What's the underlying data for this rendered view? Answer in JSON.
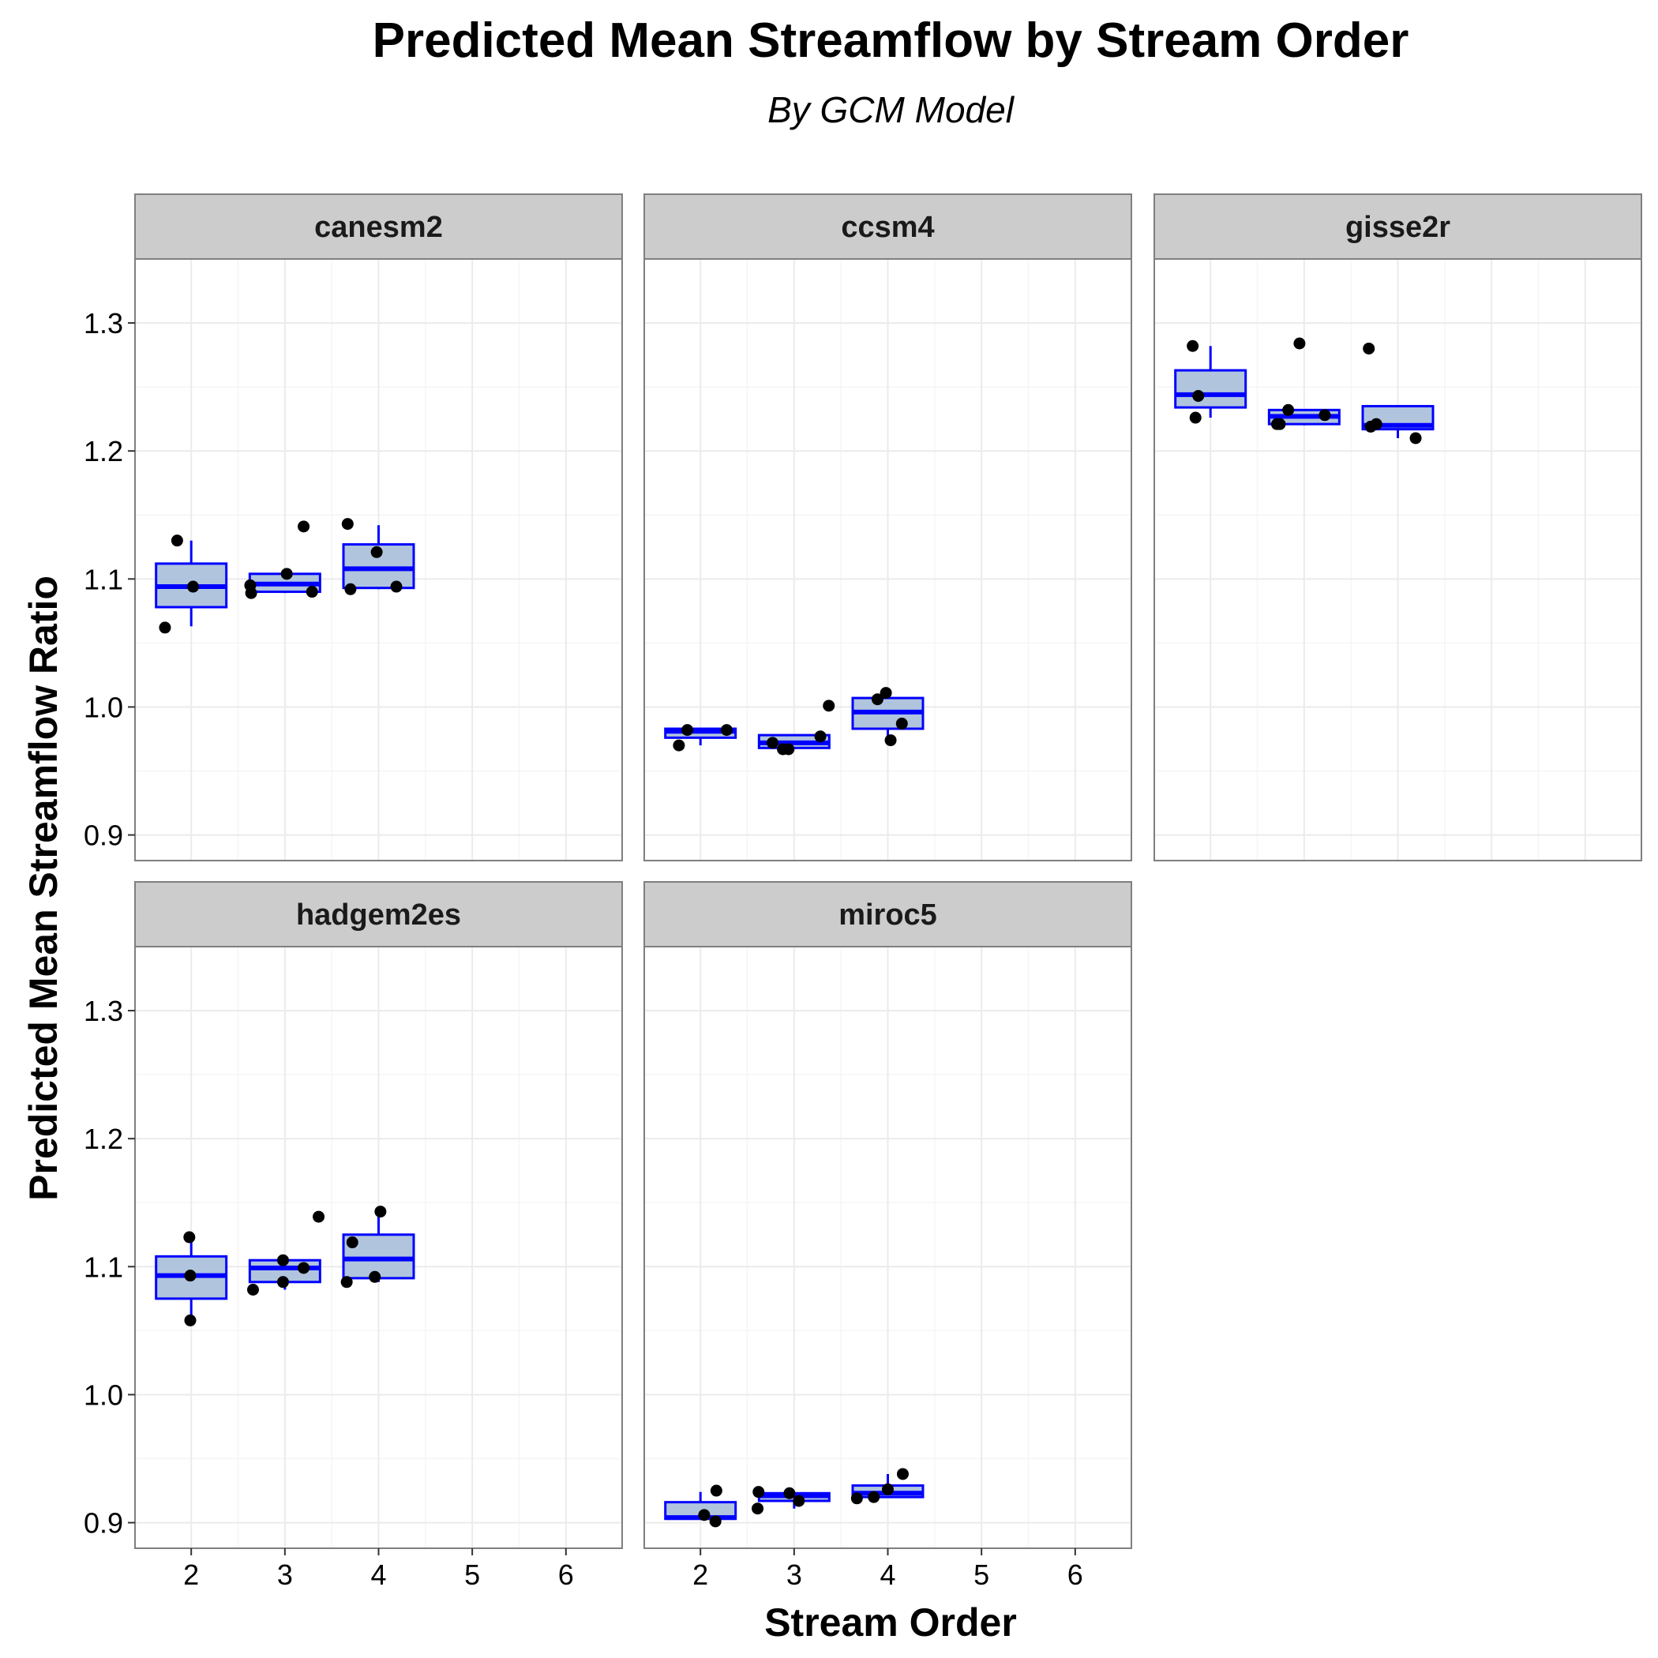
{
  "chart_data": {
    "type": "boxplot",
    "title": "Predicted Mean Streamflow by Stream Order",
    "subtitle": "By GCM Model",
    "xlabel": "Stream Order",
    "ylabel": "Predicted Mean Streamflow Ratio",
    "x_ticks": [
      2,
      3,
      4,
      5,
      6
    ],
    "y_ticks": [
      0.9,
      1.0,
      1.1,
      1.2,
      1.3
    ],
    "xlim": [
      1.4,
      6.6
    ],
    "ylim": [
      0.88,
      1.35
    ],
    "grid": true,
    "colors": {
      "box_fill": "#b0c4de",
      "box_stroke": "#0000ff",
      "point": "#000000",
      "strip_bg": "#cccccc",
      "grid": "#ebebeb",
      "panel_border": "#7f7f7f"
    },
    "panels": [
      {
        "name": "canesm2",
        "boxes": [
          {
            "x": 2,
            "lower_whisker": 1.063,
            "q1": 1.078,
            "median": 1.094,
            "q3": 1.112,
            "upper_whisker": 1.13
          },
          {
            "x": 3,
            "lower_whisker": 1.089,
            "q1": 1.09,
            "median": 1.096,
            "q3": 1.104,
            "upper_whisker": 1.104
          },
          {
            "x": 4,
            "lower_whisker": 1.092,
            "q1": 1.093,
            "median": 1.108,
            "q3": 1.127,
            "upper_whisker": 1.142
          }
        ],
        "points": [
          {
            "x": 1.72,
            "y": 1.062
          },
          {
            "x": 1.85,
            "y": 1.13
          },
          {
            "x": 2.02,
            "y": 1.094
          },
          {
            "x": 2.63,
            "y": 1.095
          },
          {
            "x": 2.64,
            "y": 1.089
          },
          {
            "x": 3.02,
            "y": 1.104
          },
          {
            "x": 3.2,
            "y": 1.141
          },
          {
            "x": 3.29,
            "y": 1.09
          },
          {
            "x": 3.67,
            "y": 1.143
          },
          {
            "x": 3.7,
            "y": 1.092
          },
          {
            "x": 3.98,
            "y": 1.121
          },
          {
            "x": 4.19,
            "y": 1.094
          }
        ]
      },
      {
        "name": "ccsm4",
        "boxes": [
          {
            "x": 2,
            "lower_whisker": 0.97,
            "q1": 0.976,
            "median": 0.981,
            "q3": 0.983,
            "upper_whisker": 0.983
          },
          {
            "x": 3,
            "lower_whisker": 0.967,
            "q1": 0.968,
            "median": 0.972,
            "q3": 0.978,
            "upper_whisker": 0.978
          },
          {
            "x": 4,
            "lower_whisker": 0.974,
            "q1": 0.983,
            "median": 0.996,
            "q3": 1.007,
            "upper_whisker": 1.011
          }
        ],
        "points": [
          {
            "x": 1.77,
            "y": 0.97
          },
          {
            "x": 1.86,
            "y": 0.982
          },
          {
            "x": 2.28,
            "y": 0.982
          },
          {
            "x": 2.77,
            "y": 0.972
          },
          {
            "x": 2.88,
            "y": 0.967
          },
          {
            "x": 2.94,
            "y": 0.967
          },
          {
            "x": 3.28,
            "y": 0.977
          },
          {
            "x": 3.37,
            "y": 1.001
          },
          {
            "x": 3.89,
            "y": 1.006
          },
          {
            "x": 3.98,
            "y": 1.011
          },
          {
            "x": 4.03,
            "y": 0.974
          },
          {
            "x": 4.15,
            "y": 0.987
          }
        ]
      },
      {
        "name": "gisse2r",
        "boxes": [
          {
            "x": 2,
            "lower_whisker": 1.226,
            "q1": 1.234,
            "median": 1.244,
            "q3": 1.263,
            "upper_whisker": 1.282
          },
          {
            "x": 3,
            "lower_whisker": 1.22,
            "q1": 1.221,
            "median": 1.227,
            "q3": 1.232,
            "upper_whisker": 1.232
          },
          {
            "x": 4,
            "lower_whisker": 1.21,
            "q1": 1.217,
            "median": 1.22,
            "q3": 1.235,
            "upper_whisker": 1.235
          }
        ],
        "points": [
          {
            "x": 1.81,
            "y": 1.282
          },
          {
            "x": 1.84,
            "y": 1.226
          },
          {
            "x": 1.87,
            "y": 1.243
          },
          {
            "x": 2.71,
            "y": 1.221
          },
          {
            "x": 2.74,
            "y": 1.221
          },
          {
            "x": 2.83,
            "y": 1.232
          },
          {
            "x": 2.95,
            "y": 1.284
          },
          {
            "x": 3.22,
            "y": 1.228
          },
          {
            "x": 3.69,
            "y": 1.28
          },
          {
            "x": 3.71,
            "y": 1.219
          },
          {
            "x": 3.77,
            "y": 1.221
          },
          {
            "x": 4.19,
            "y": 1.21
          }
        ]
      },
      {
        "name": "hadgem2es",
        "boxes": [
          {
            "x": 2,
            "lower_whisker": 1.058,
            "q1": 1.075,
            "median": 1.093,
            "q3": 1.108,
            "upper_whisker": 1.123
          },
          {
            "x": 3,
            "lower_whisker": 1.082,
            "q1": 1.088,
            "median": 1.099,
            "q3": 1.105,
            "upper_whisker": 1.105
          },
          {
            "x": 4,
            "lower_whisker": 1.088,
            "q1": 1.091,
            "median": 1.106,
            "q3": 1.125,
            "upper_whisker": 1.143
          }
        ],
        "points": [
          {
            "x": 1.98,
            "y": 1.123
          },
          {
            "x": 1.99,
            "y": 1.093
          },
          {
            "x": 1.99,
            "y": 1.058
          },
          {
            "x": 2.66,
            "y": 1.082
          },
          {
            "x": 2.98,
            "y": 1.105
          },
          {
            "x": 2.98,
            "y": 1.088
          },
          {
            "x": 3.2,
            "y": 1.099
          },
          {
            "x": 3.36,
            "y": 1.139
          },
          {
            "x": 3.66,
            "y": 1.088
          },
          {
            "x": 3.72,
            "y": 1.119
          },
          {
            "x": 3.96,
            "y": 1.092
          },
          {
            "x": 4.02,
            "y": 1.143
          }
        ]
      },
      {
        "name": "miroc5",
        "boxes": [
          {
            "x": 2,
            "lower_whisker": 0.903,
            "q1": 0.903,
            "median": 0.904,
            "q3": 0.916,
            "upper_whisker": 0.924
          },
          {
            "x": 3,
            "lower_whisker": 0.911,
            "q1": 0.917,
            "median": 0.921,
            "q3": 0.923,
            "upper_whisker": 0.924
          },
          {
            "x": 4,
            "lower_whisker": 0.92,
            "q1": 0.92,
            "median": 0.923,
            "q3": 0.929,
            "upper_whisker": 0.938
          }
        ],
        "points": [
          {
            "x": 2.04,
            "y": 0.906
          },
          {
            "x": 2.16,
            "y": 0.901
          },
          {
            "x": 2.17,
            "y": 0.925
          },
          {
            "x": 2.61,
            "y": 0.911
          },
          {
            "x": 2.62,
            "y": 0.924
          },
          {
            "x": 2.95,
            "y": 0.923
          },
          {
            "x": 3.05,
            "y": 0.917
          },
          {
            "x": 3.67,
            "y": 0.919
          },
          {
            "x": 3.85,
            "y": 0.92
          },
          {
            "x": 4.0,
            "y": 0.926
          },
          {
            "x": 4.16,
            "y": 0.938
          }
        ]
      }
    ]
  }
}
